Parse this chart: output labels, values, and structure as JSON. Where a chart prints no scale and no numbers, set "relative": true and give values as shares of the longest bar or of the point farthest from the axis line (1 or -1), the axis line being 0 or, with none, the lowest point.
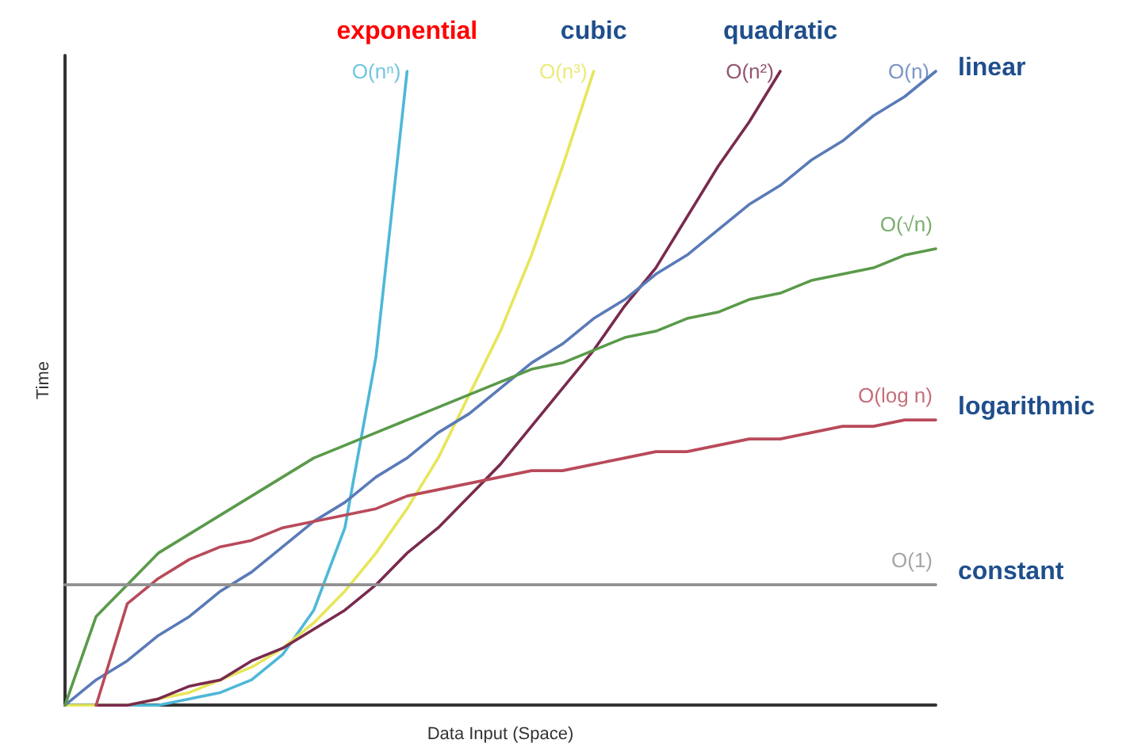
{
  "chart_data": {
    "type": "line",
    "relative": true,
    "xlabel": "Data Input (Space)",
    "ylabel": "Time",
    "categories": [
      null,
      null,
      null,
      null,
      null,
      null,
      null,
      null,
      null,
      null,
      null,
      null,
      null,
      null,
      null,
      null,
      null,
      null,
      null,
      null,
      null,
      null,
      null,
      null,
      null,
      null,
      null,
      null,
      null
    ],
    "annotations": [
      "exponential",
      "cubic",
      "quadratic",
      "linear",
      "logarithmic",
      "constant"
    ],
    "series": [
      {
        "name": "O(nⁿ)",
        "color": "#4db8d8",
        "values": [
          0,
          0,
          0,
          0,
          0.01,
          0.02,
          0.04,
          0.08,
          0.15,
          0.28,
          0.55,
          1.0,
          null,
          null,
          null,
          null,
          null,
          null,
          null,
          null,
          null,
          null,
          null,
          null,
          null,
          null,
          null,
          null,
          null
        ]
      },
      {
        "name": "O(n³)",
        "color": "#e6e65a",
        "values": [
          0,
          0,
          0,
          0.01,
          0.02,
          0.04,
          0.06,
          0.09,
          0.13,
          0.18,
          0.24,
          0.31,
          0.39,
          0.49,
          0.59,
          0.71,
          0.85,
          1.0,
          null,
          null,
          null,
          null,
          null,
          null,
          null,
          null,
          null,
          null,
          null
        ]
      },
      {
        "name": "O(n²)",
        "color": "#7a2a4e",
        "values": [
          null,
          0,
          0,
          0.01,
          0.03,
          0.04,
          0.07,
          0.09,
          0.12,
          0.15,
          0.19,
          0.24,
          0.28,
          0.33,
          0.38,
          0.44,
          0.5,
          0.56,
          0.63,
          0.69,
          0.77,
          0.85,
          0.92,
          1.0,
          null,
          null,
          null,
          null,
          null
        ]
      },
      {
        "name": "O(n)",
        "color": "#5a7ab8",
        "values": [
          0,
          0.04,
          0.07,
          0.11,
          0.14,
          0.18,
          0.21,
          0.25,
          0.29,
          0.32,
          0.36,
          0.39,
          0.43,
          0.46,
          0.5,
          0.54,
          0.57,
          0.61,
          0.64,
          0.68,
          0.71,
          0.75,
          0.79,
          0.82,
          0.86,
          0.89,
          0.93,
          0.96,
          1.0
        ]
      },
      {
        "name": "O(√n)",
        "color": "#5a9a4a",
        "values": [
          0,
          0.14,
          0.19,
          0.24,
          0.27,
          0.3,
          0.33,
          0.36,
          0.39,
          0.41,
          0.43,
          0.45,
          0.47,
          0.49,
          0.51,
          0.53,
          0.54,
          0.56,
          0.58,
          0.59,
          0.61,
          0.62,
          0.64,
          0.65,
          0.67,
          0.68,
          0.69,
          0.71,
          0.72
        ]
      },
      {
        "name": "O(log n)",
        "color": "#b84a5a",
        "values": [
          null,
          0,
          0.16,
          0.2,
          0.23,
          0.25,
          0.26,
          0.28,
          0.29,
          0.3,
          0.31,
          0.33,
          0.34,
          0.35,
          0.36,
          0.37,
          0.37,
          0.38,
          0.39,
          0.4,
          0.4,
          0.41,
          0.42,
          0.42,
          0.43,
          0.44,
          0.44,
          0.45,
          0.45
        ]
      },
      {
        "name": "O(1)",
        "color": "#909090",
        "values": [
          0.19,
          0.19,
          0.19,
          0.19,
          0.19,
          0.19,
          0.19,
          0.19,
          0.19,
          0.19,
          0.19,
          0.19,
          0.19,
          0.19,
          0.19,
          0.19,
          0.19,
          0.19,
          0.19,
          0.19,
          0.19,
          0.19,
          0.19,
          0.19,
          0.19,
          0.19,
          0.19,
          0.19,
          0.19
        ]
      }
    ]
  }
}
